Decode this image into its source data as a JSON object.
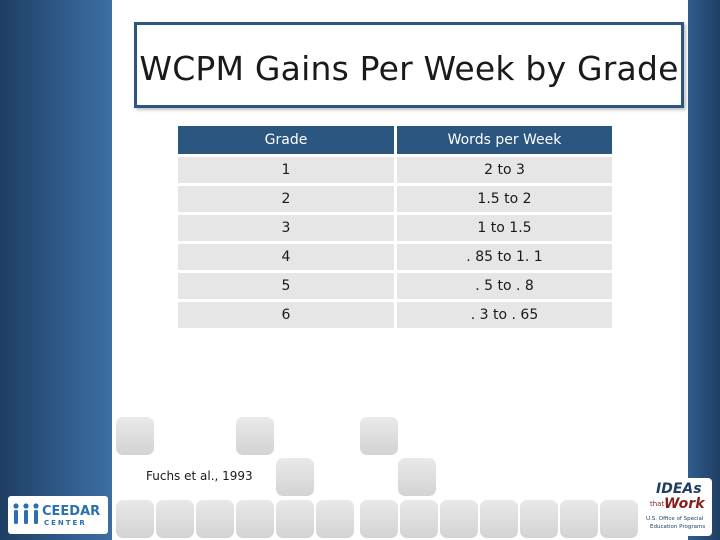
{
  "slide": {
    "title": "WCPM Gains Per Week by Grade",
    "citation": "Fuchs et al., 1993"
  },
  "table": {
    "headers": [
      "Grade",
      "Words per Week"
    ],
    "rows": [
      [
        "1",
        "2 to 3"
      ],
      [
        "2",
        "1.5 to 2"
      ],
      [
        "3",
        "1 to 1.5"
      ],
      [
        "4",
        ". 85 to 1. 1"
      ],
      [
        "5",
        ". 5 to . 8"
      ],
      [
        "6",
        ". 3 to . 65"
      ]
    ]
  },
  "logos": {
    "ceedar": {
      "text_top": "CEEDAR",
      "text_bottom": "CENTER"
    },
    "ideas": {
      "line1": "IDEAs",
      "line2": "that",
      "line3": "Work",
      "caption1": "U.S. Office of Special",
      "caption2": "Education Programs"
    }
  },
  "colors": {
    "accent": "#2a5680",
    "row_fill": "#e6e6e6",
    "side_bar": "#2e5a8a"
  }
}
